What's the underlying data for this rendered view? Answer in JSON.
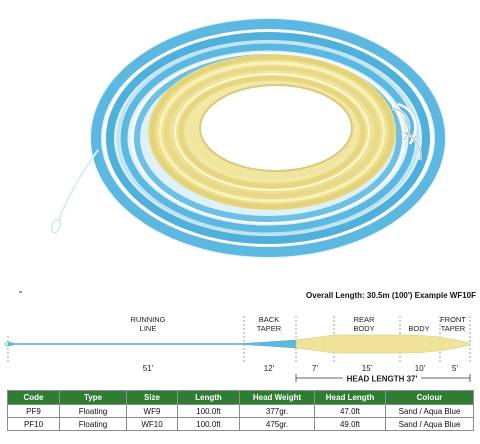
{
  "overall_length": "Overall Length: 30.5m (100') Example WF10F",
  "sections": {
    "running_line": [
      "RUNNING",
      "LINE"
    ],
    "back_taper": [
      "BACK",
      "TAPER"
    ],
    "rear_body": [
      "REAR",
      "BODY"
    ],
    "body": "BODY",
    "front_taper": [
      "FRONT",
      "TAPER"
    ]
  },
  "lengths": {
    "running_line": "51'",
    "back_taper": "12'",
    "rear_taper": "7'",
    "rear_body": "15'",
    "body": "10'",
    "front_taper": "5'"
  },
  "head_length": "HEAD LENGTH 37'",
  "table": {
    "headers": [
      "Code",
      "Type",
      "Size",
      "Length",
      "Head Weight",
      "Head Length",
      "Colour"
    ],
    "rows": [
      [
        "PF9",
        "Floating",
        "WF9",
        "100.0ft",
        "377gr.",
        "47.0ft",
        "Sand / Aqua Blue"
      ],
      [
        "PF10",
        "Floating",
        "WF10",
        "100.0ft",
        "475gr.",
        "49.0ft",
        "Sand / Aqua Blue"
      ]
    ]
  },
  "colors": {
    "aqua": "#5cb8e0",
    "sand": "#efe39a",
    "header_green": "#2e7d32"
  }
}
